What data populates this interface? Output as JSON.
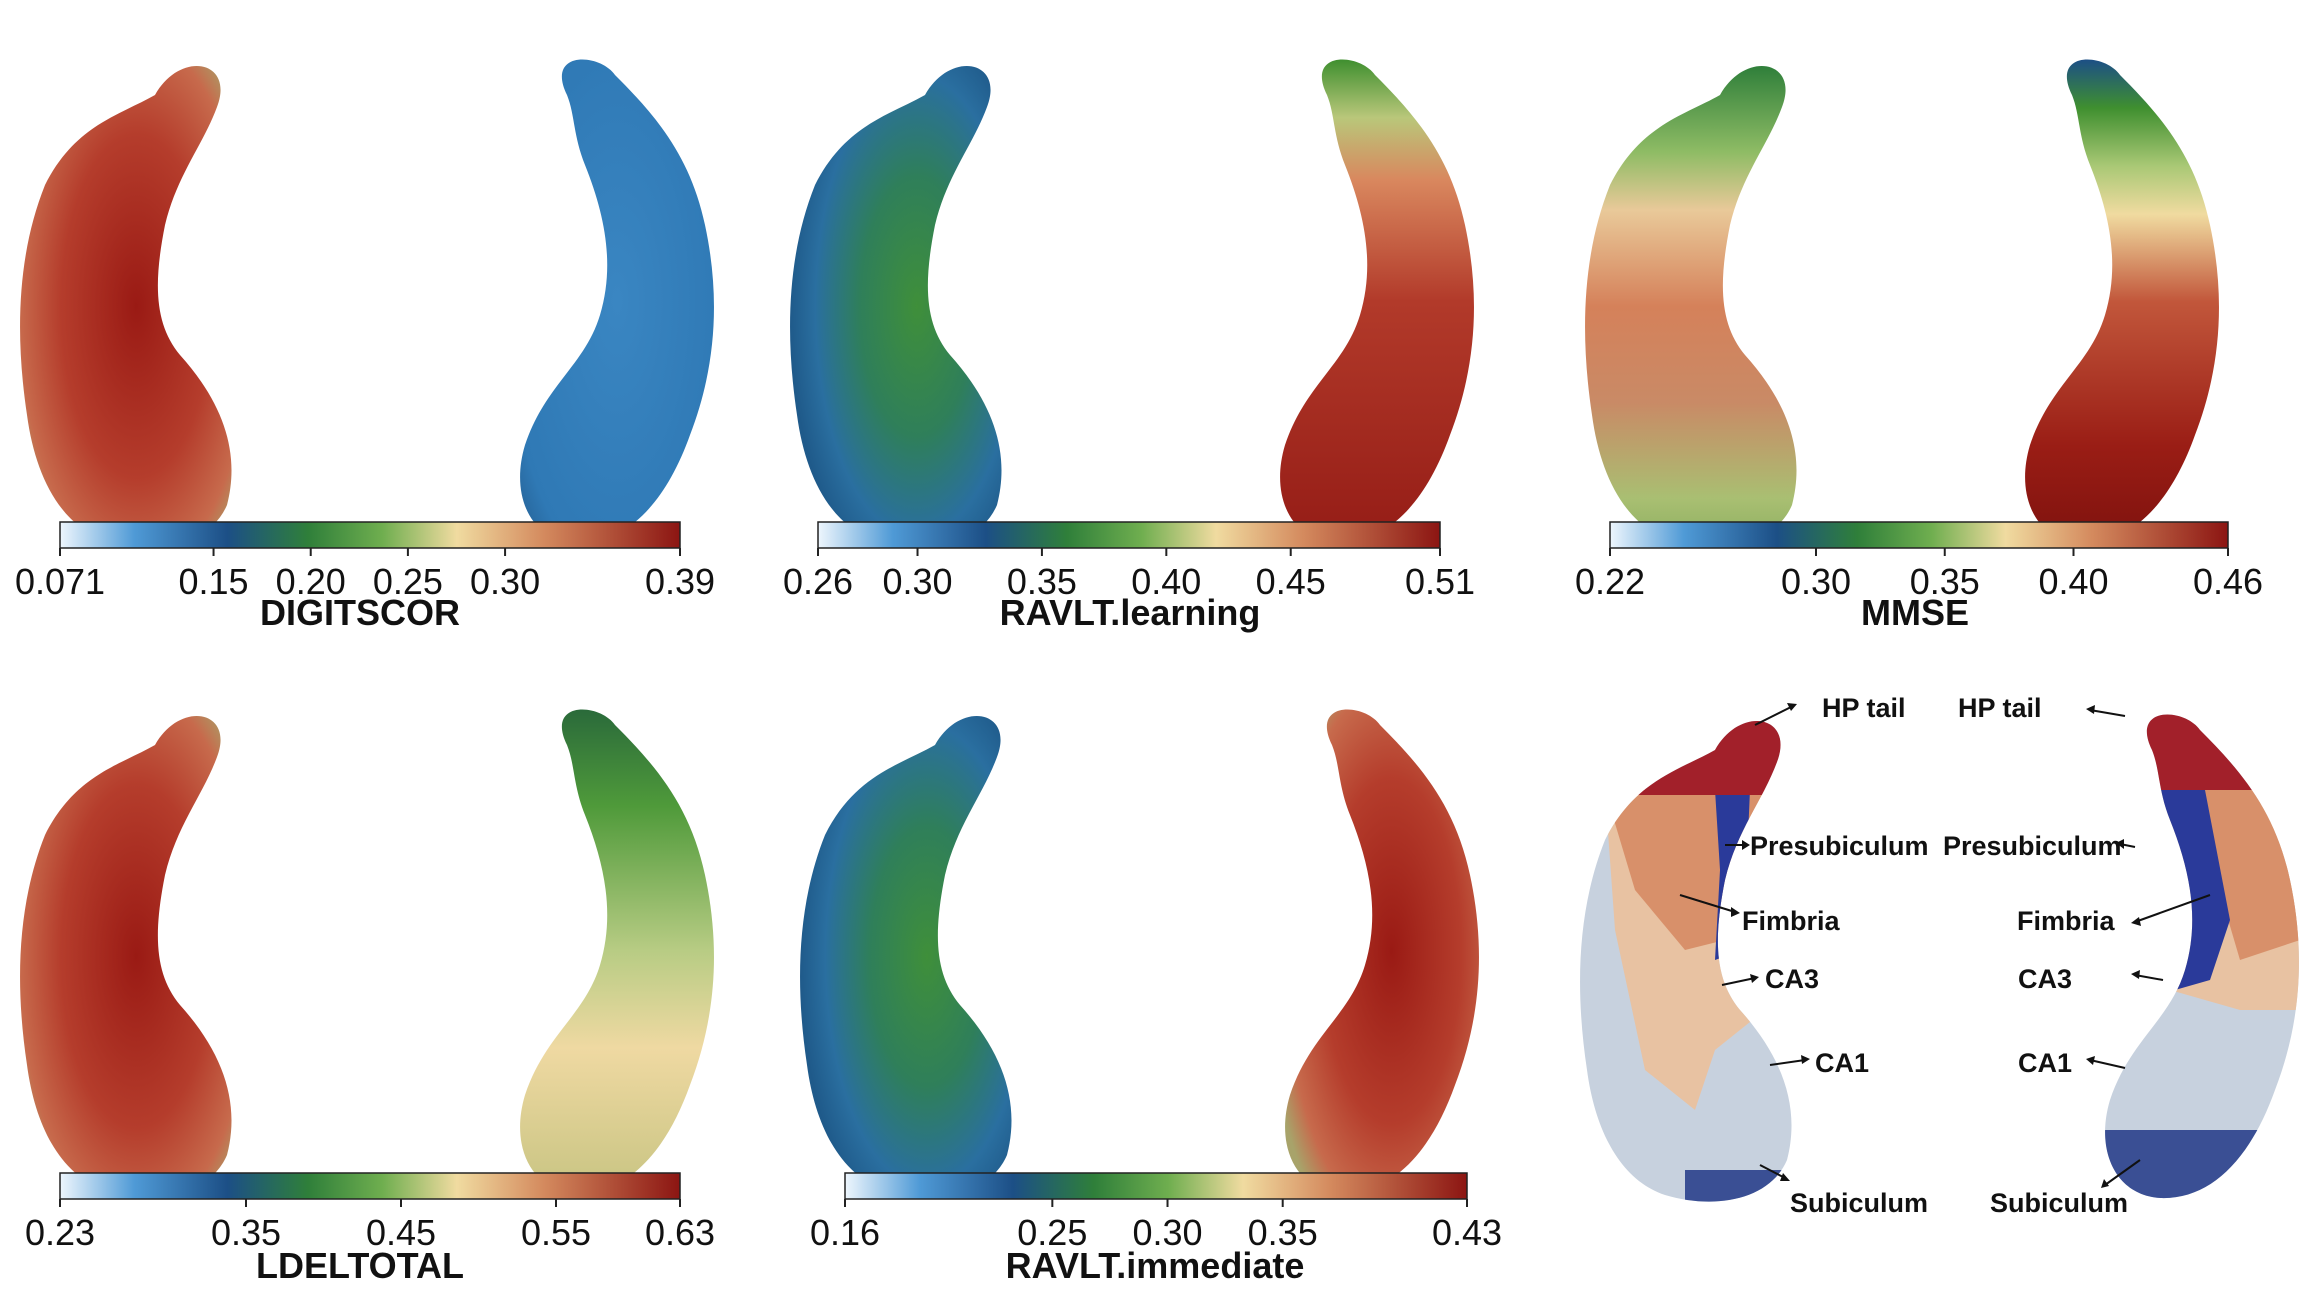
{
  "colors": {
    "light_blue": "#dcecfa",
    "blue": "#2f79b5",
    "dark_blue": "#1c4f86",
    "green": "#3f8f2f",
    "tan": "#f0dba0",
    "orange": "#d48a5e",
    "red": "#b23a2a",
    "dark_red": "#8c1512",
    "segment_tail": "#a2202a",
    "segment_presubiculum": "#2a3a9a",
    "segment_fimbria": "#d8906a",
    "segment_ca3": "#e8c2a2",
    "segment_ca1": "#c7d1de",
    "segment_subiculum": "#3a4f94"
  },
  "panels": [
    {
      "title": "DIGITSCOR",
      "ticks": [
        "0.071",
        "0.15",
        "0.20",
        "0.25",
        "0.30",
        "0.39"
      ],
      "tick_values": [
        0.071,
        0.15,
        0.2,
        0.25,
        0.3,
        0.39
      ],
      "range": [
        0.071,
        0.39
      ],
      "left_shape": "red",
      "right_shape": "blue"
    },
    {
      "title": "RAVLT.learning",
      "ticks": [
        "0.26",
        "0.30",
        "0.35",
        "0.40",
        "0.45",
        "0.51"
      ],
      "tick_values": [
        0.26,
        0.3,
        0.35,
        0.4,
        0.45,
        0.51
      ],
      "range": [
        0.26,
        0.51
      ],
      "left_shape": "bluegreen",
      "right_shape": "redgreentop"
    },
    {
      "title": "MMSE",
      "ticks": [
        "0.22",
        "0.30",
        "0.35",
        "0.40",
        "0.46"
      ],
      "tick_values": [
        0.22,
        0.3,
        0.35,
        0.4,
        0.46
      ],
      "range": [
        0.22,
        0.46
      ],
      "left_shape": "mixed",
      "right_shape": "redbluetop"
    },
    {
      "title": "LDELTOTAL",
      "ticks": [
        "0.23",
        "0.35",
        "0.45",
        "0.55",
        "0.63"
      ],
      "tick_values": [
        0.23,
        0.35,
        0.45,
        0.55,
        0.63
      ],
      "range": [
        0.23,
        0.63
      ],
      "left_shape": "red",
      "right_shape": "greentan"
    },
    {
      "title": "RAVLT.immediate",
      "ticks": [
        "0.16",
        "0.25",
        "0.30",
        "0.35",
        "0.43"
      ],
      "tick_values": [
        0.16,
        0.25,
        0.3,
        0.35,
        0.43
      ],
      "range": [
        0.16,
        0.43
      ],
      "left_shape": "bluegreen",
      "right_shape": "red"
    }
  ],
  "segmentation_labels": {
    "left": [
      "HP tail",
      "Presubiculum",
      "Fimbria",
      "CA3",
      "CA1",
      "Subiculum"
    ],
    "right": [
      "HP tail",
      "Presubiculum",
      "Fimbria",
      "CA3",
      "CA1",
      "Subiculum"
    ]
  }
}
